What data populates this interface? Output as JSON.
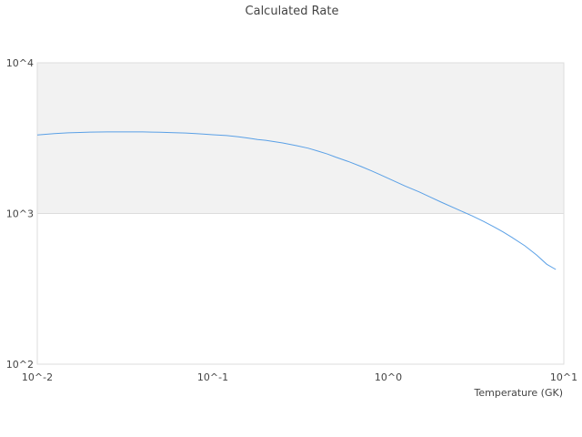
{
  "chart_data": {
    "type": "line",
    "title": "Calculated Rate",
    "xlabel": "Temperature (GK)",
    "ylabel": "",
    "x_scale": "log",
    "y_scale": "log",
    "xlim": [
      0.01,
      10
    ],
    "ylim": [
      100,
      10000
    ],
    "x_ticks": [
      0.01,
      0.1,
      1,
      10
    ],
    "x_tick_labels": [
      "10^-2",
      "10^-1",
      "10^0",
      "10^1"
    ],
    "y_ticks": [
      100,
      1000,
      10000
    ],
    "y_tick_labels": [
      "10^2",
      "10^3",
      "10^4"
    ],
    "shaded_band": [
      1000,
      10000
    ],
    "grid": false,
    "legend": "none",
    "colors": {
      "line": "#5aa0e6",
      "band": "#f2f2f2",
      "border": "#dddddd"
    },
    "series": [
      {
        "color": "#5aa0e6",
        "x": [
          0.01,
          0.0125,
          0.015,
          0.0175,
          0.02,
          0.025,
          0.03,
          0.035,
          0.04,
          0.045,
          0.05,
          0.06,
          0.07,
          0.08,
          0.09,
          0.1,
          0.12,
          0.14,
          0.16,
          0.18,
          0.2,
          0.25,
          0.3,
          0.35,
          0.4,
          0.45,
          0.5,
          0.6,
          0.7,
          0.8,
          0.9,
          1.0,
          1.25,
          1.5,
          1.75,
          2.0,
          2.5,
          3.0,
          3.5,
          4.0,
          4.5,
          5.0,
          6.0,
          7.0,
          8.0,
          9.0
        ],
        "y": [
          3320,
          3390,
          3430,
          3450,
          3470,
          3480,
          3480,
          3480,
          3480,
          3470,
          3460,
          3440,
          3420,
          3390,
          3360,
          3330,
          3290,
          3230,
          3160,
          3100,
          3060,
          2940,
          2820,
          2710,
          2590,
          2480,
          2370,
          2200,
          2050,
          1920,
          1810,
          1710,
          1520,
          1390,
          1280,
          1190,
          1060,
          965,
          885,
          815,
          755,
          700,
          610,
          530,
          460,
          425
        ]
      }
    ]
  }
}
